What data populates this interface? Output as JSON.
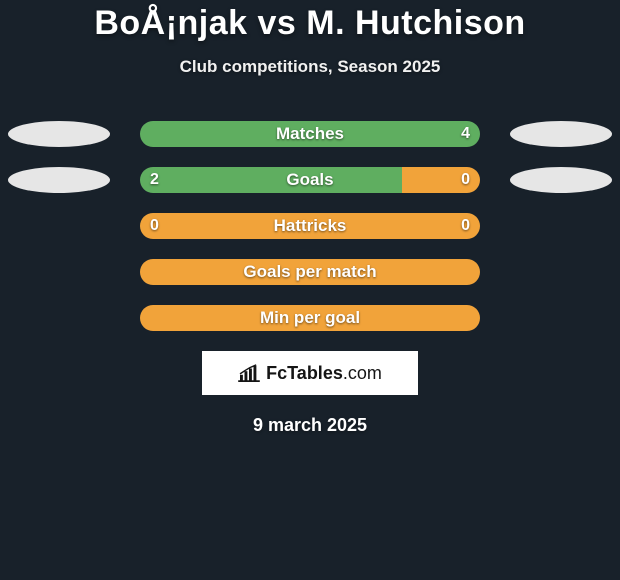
{
  "title": "BoÅ¡njak vs M. Hutchison",
  "subtitle": "Club competitions, Season 2025",
  "date": "9 march 2025",
  "brand_text_bold": "FcTables",
  "brand_text_light": ".com",
  "left_ellipse_color": "#e6e6e6",
  "right_ellipse_color": "#e6e6e6",
  "background_color": "#18212a",
  "brand_bg": "#ffffff",
  "brand_fg": "#151515",
  "rows": [
    {
      "label": "Matches",
      "left_value": "",
      "right_value": "4",
      "left_pct": 0,
      "right_pct": 100,
      "left_color": "#f1a33a",
      "right_color": "#5fae60",
      "show_left_ellipse": true,
      "show_right_ellipse": true
    },
    {
      "label": "Goals",
      "left_value": "2",
      "right_value": "0",
      "left_pct": 77,
      "right_pct": 23,
      "left_color": "#5fae60",
      "right_color": "#f1a33a",
      "show_left_ellipse": true,
      "show_right_ellipse": true
    },
    {
      "label": "Hattricks",
      "left_value": "0",
      "right_value": "0",
      "left_pct": 0,
      "right_pct": 100,
      "left_color": "#f1a33a",
      "right_color": "#f1a33a",
      "show_left_ellipse": false,
      "show_right_ellipse": false
    },
    {
      "label": "Goals per match",
      "left_value": "",
      "right_value": "",
      "left_pct": 0,
      "right_pct": 100,
      "left_color": "#f1a33a",
      "right_color": "#f1a33a",
      "show_left_ellipse": false,
      "show_right_ellipse": false
    },
    {
      "label": "Min per goal",
      "left_value": "",
      "right_value": "",
      "left_pct": 0,
      "right_pct": 100,
      "left_color": "#f1a33a",
      "right_color": "#f1a33a",
      "show_left_ellipse": false,
      "show_right_ellipse": false
    }
  ]
}
